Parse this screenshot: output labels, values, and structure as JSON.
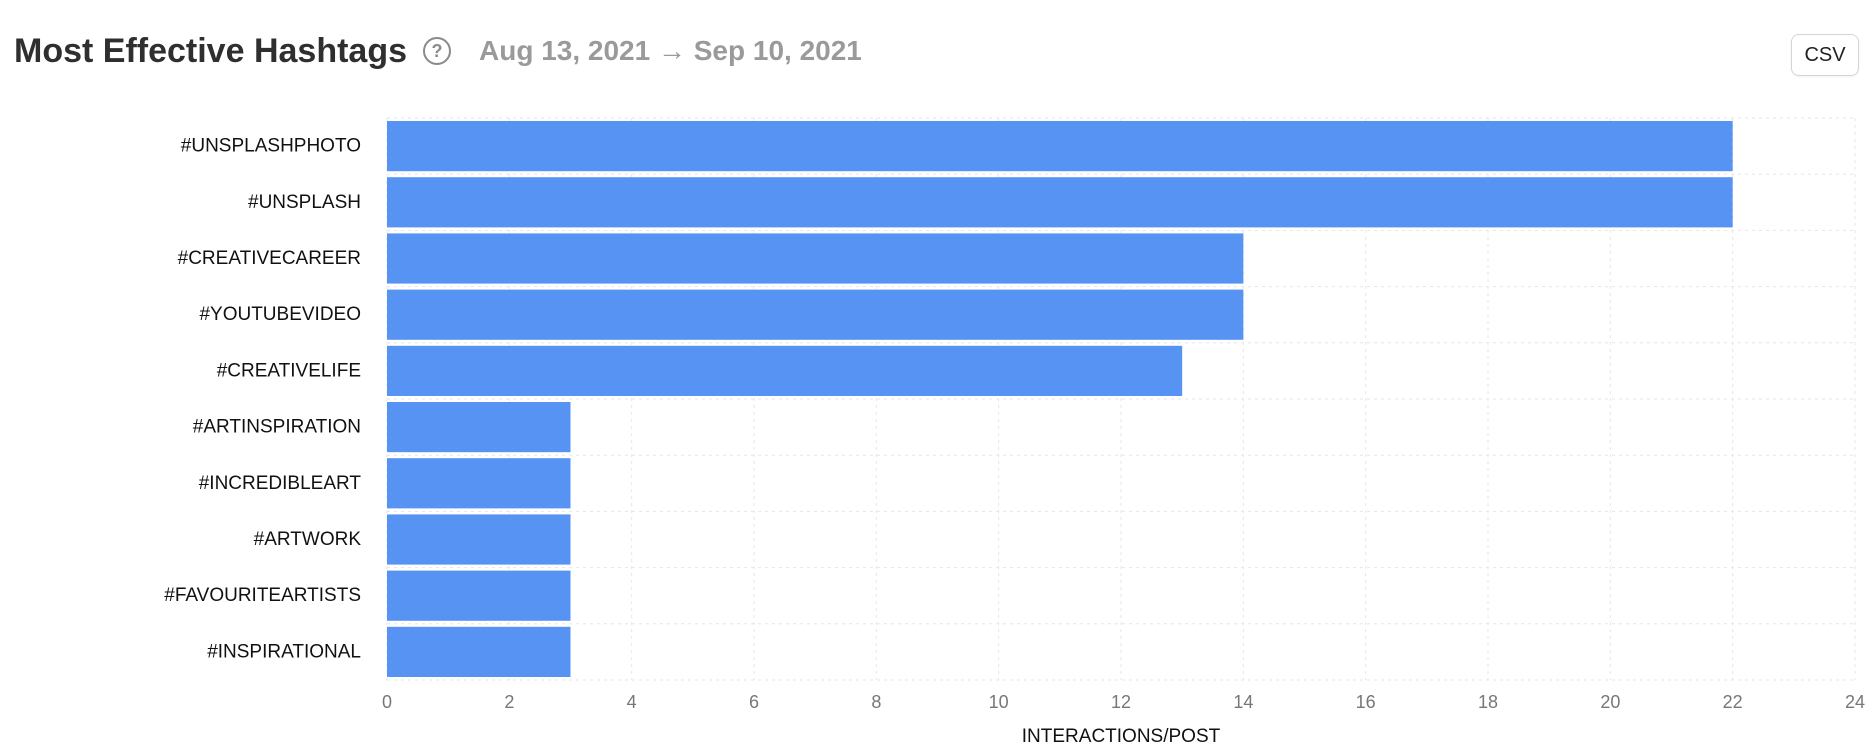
{
  "header": {
    "title": "Most Effective Hashtags",
    "help_icon": "question-circle-icon",
    "date_range": "Aug 13, 2021 → Sep 10, 2021"
  },
  "toolbar": {
    "csv_label": "CSV"
  },
  "colors": {
    "bar": "#5793f3",
    "grid": "#e6e6e6"
  },
  "chart_data": {
    "type": "bar",
    "orientation": "horizontal",
    "categories": [
      "#UNSPLASHPHOTO",
      "#UNSPLASH",
      "#CREATIVECAREER",
      "#YOUTUBEVIDEO",
      "#CREATIVELIFE",
      "#ARTINSPIRATION",
      "#INCREDIBLEART",
      "#ARTWORK",
      "#FAVOURITEARTISTS",
      "#INSPIRATIONAL"
    ],
    "values": [
      22,
      22,
      14,
      14,
      13,
      3,
      3,
      3,
      3,
      3
    ],
    "xlabel": "INTERACTIONS/POST",
    "ylabel": "",
    "xlim": [
      0,
      24
    ],
    "xticks": [
      0,
      2,
      4,
      6,
      8,
      10,
      12,
      14,
      16,
      18,
      20,
      22,
      24
    ],
    "grid": true,
    "grid_style": "dotted",
    "legend": "none"
  }
}
